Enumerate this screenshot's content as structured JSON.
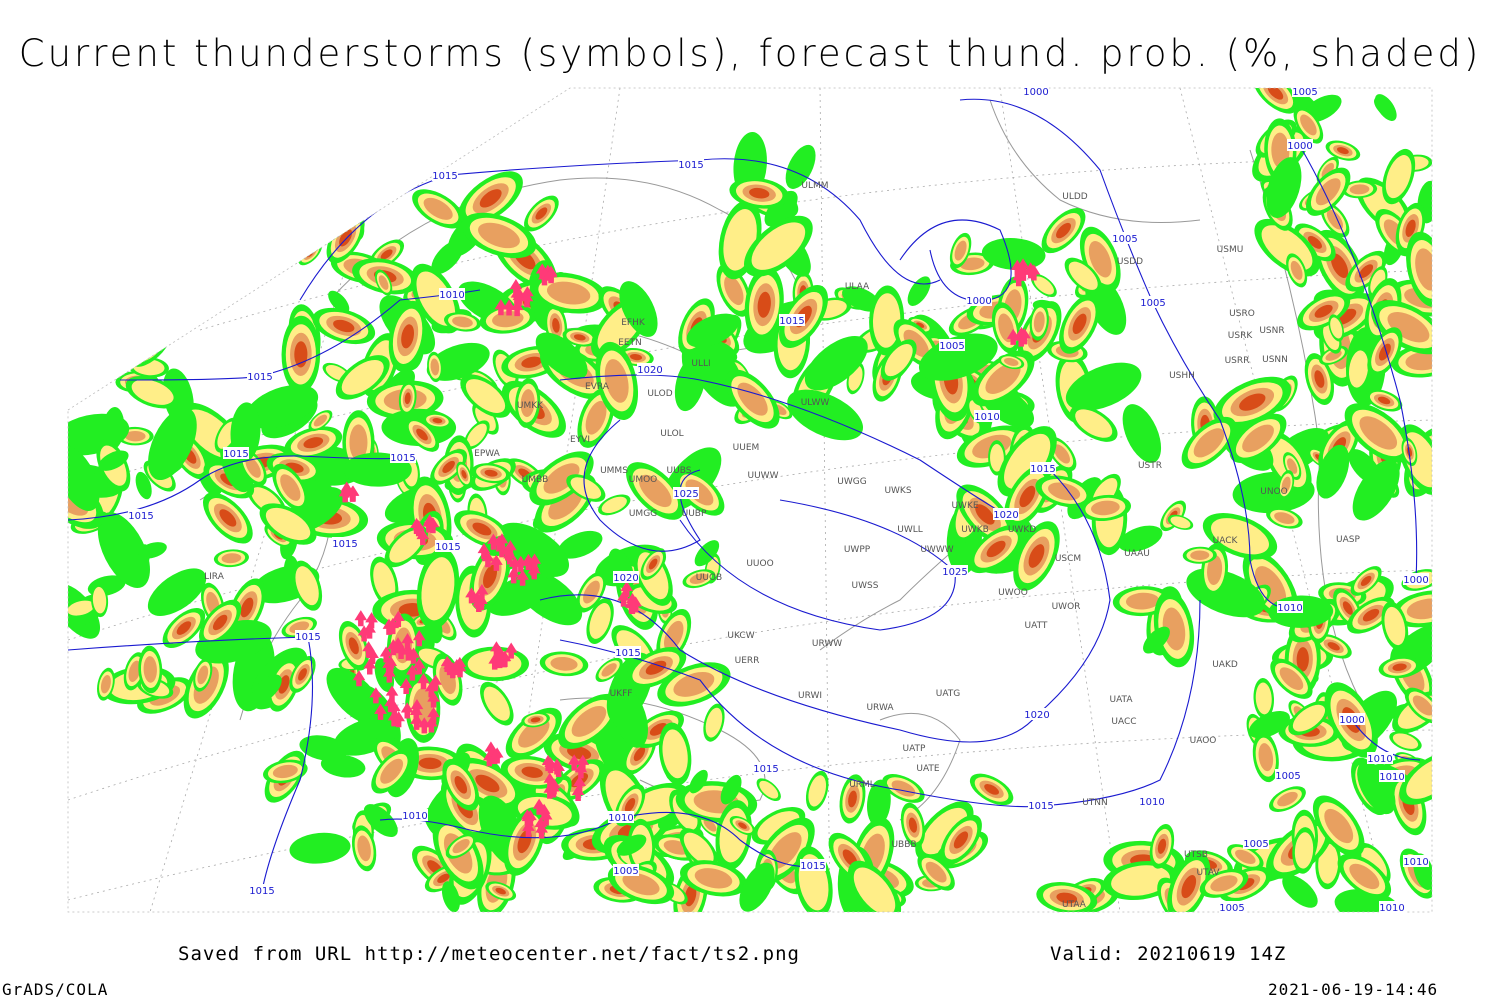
{
  "header": {
    "title": "Current thunderstorms (symbols), forecast thund. prob. (%, shaded)"
  },
  "map": {
    "isobar_labels": [
      "1015",
      "1015",
      "1010",
      "1015",
      "1015",
      "1015",
      "1015",
      "1015",
      "1015",
      "1020",
      "1025",
      "1020",
      "1015",
      "1015",
      "1015",
      "1010",
      "1010",
      "1005",
      "1015",
      "1015",
      "1000",
      "1005",
      "1000",
      "1005",
      "1010",
      "1015",
      "1020",
      "1025",
      "1020",
      "1015",
      "1010",
      "1005",
      "1000",
      "1005",
      "1010",
      "1000",
      "1000",
      "1010",
      "1010",
      "1005",
      "1005",
      "1010",
      "1005",
      "1010",
      "1015"
    ],
    "station_labels": [
      "EFHK",
      "EETN",
      "ULLI",
      "EVRA",
      "ULOD",
      "UMKK",
      "ULOL",
      "EYVI",
      "UUEM",
      "EPWA",
      "UMMS",
      "UMOO",
      "UUBS",
      "UMBB",
      "UUWW",
      "UWGG",
      "UWKS",
      "UMGG",
      "UUBP",
      "ULAA",
      "ULMM",
      "ULWW",
      "UWKE",
      "UWKB",
      "UWLL",
      "UWWW",
      "UUOO",
      "UUOB",
      "UWPP",
      "UWSS",
      "UWKD",
      "USCM",
      "UAAU",
      "UWOO",
      "UWOR",
      "UATT",
      "UKCW",
      "URWW",
      "UERR",
      "UKFF",
      "URWI",
      "UATG",
      "URWA",
      "UATA",
      "UACC",
      "UAOO",
      "UAKD",
      "USTR",
      "UNOO",
      "UACK",
      "UASP",
      "USRR",
      "USNN",
      "USRK",
      "USNR",
      "USRO",
      "USHH",
      "USMU",
      "USDD",
      "ULDD",
      "UATE",
      "UATP",
      "UTNN",
      "UTSB",
      "UTAV",
      "UTAA",
      "UBBB",
      "URML",
      "LIRA"
    ]
  },
  "footer": {
    "source": "Saved from URL http://meteocenter.net/fact/ts2.png",
    "valid": "Valid: 20210619 14Z",
    "software": "GrADS/COLA",
    "timestamp": "2021-06-19-14:46"
  }
}
